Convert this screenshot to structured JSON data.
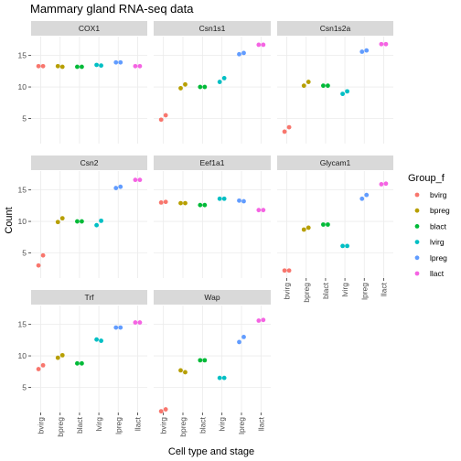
{
  "chart_data": {
    "type": "scatter",
    "title": "Mammary gland RNA-seq data",
    "xlabel": "Cell type and stage",
    "ylabel": "Count",
    "categories": [
      "bvirg",
      "bpreg",
      "blact",
      "lvirg",
      "lpreg",
      "llact"
    ],
    "ylim": [
      1,
      18
    ],
    "yticks": [
      5,
      10,
      15
    ],
    "legend": {
      "title": "Group_f",
      "position": "right",
      "entries": [
        "bvirg",
        "bpreg",
        "blact",
        "lvirg",
        "lpreg",
        "llact"
      ]
    },
    "colors": {
      "bvirg": "#F8766D",
      "bpreg": "#B79F00",
      "blact": "#00BA38",
      "lvirg": "#00BFC4",
      "lpreg": "#619CFF",
      "llact": "#F564E3"
    },
    "facets": [
      {
        "name": "COX1",
        "values": [
          [
            13.3,
            13.3
          ],
          [
            13.3,
            13.2
          ],
          [
            13.2,
            13.2
          ],
          [
            13.5,
            13.4
          ],
          [
            13.9,
            13.9
          ],
          [
            13.3,
            13.3
          ]
        ]
      },
      {
        "name": "Csn1s1",
        "values": [
          [
            4.8,
            5.5
          ],
          [
            9.8,
            10.4
          ],
          [
            10.0,
            10.0
          ],
          [
            10.8,
            11.4
          ],
          [
            15.2,
            15.4
          ],
          [
            16.7,
            16.7
          ]
        ]
      },
      {
        "name": "Csn1s2a",
        "values": [
          [
            2.9,
            3.6
          ],
          [
            10.2,
            10.8
          ],
          [
            10.2,
            10.2
          ],
          [
            8.9,
            9.3
          ],
          [
            15.6,
            15.8
          ],
          [
            16.8,
            16.8
          ]
        ]
      },
      {
        "name": "Csn2",
        "values": [
          [
            3.0,
            4.6
          ],
          [
            9.9,
            10.5
          ],
          [
            10.0,
            10.0
          ],
          [
            9.4,
            10.1
          ],
          [
            15.3,
            15.5
          ],
          [
            16.6,
            16.6
          ]
        ]
      },
      {
        "name": "Eef1a1",
        "values": [
          [
            13.0,
            13.1
          ],
          [
            12.9,
            12.9
          ],
          [
            12.6,
            12.6
          ],
          [
            13.6,
            13.6
          ],
          [
            13.3,
            13.2
          ],
          [
            11.8,
            11.8
          ]
        ]
      },
      {
        "name": "Glycam1",
        "values": [
          [
            2.2,
            2.2
          ],
          [
            8.7,
            9.0
          ],
          [
            9.5,
            9.5
          ],
          [
            6.1,
            6.1
          ],
          [
            13.6,
            14.2
          ],
          [
            15.9,
            16.0
          ]
        ]
      },
      {
        "name": "Trf",
        "values": [
          [
            7.9,
            8.5
          ],
          [
            9.7,
            10.1
          ],
          [
            8.8,
            8.8
          ],
          [
            12.6,
            12.4
          ],
          [
            14.5,
            14.5
          ],
          [
            15.3,
            15.3
          ]
        ]
      },
      {
        "name": "Wap",
        "values": [
          [
            1.2,
            1.5
          ],
          [
            7.7,
            7.4
          ],
          [
            9.3,
            9.3
          ],
          [
            6.5,
            6.5
          ],
          [
            12.2,
            13.0
          ],
          [
            15.6,
            15.7
          ]
        ]
      }
    ]
  }
}
